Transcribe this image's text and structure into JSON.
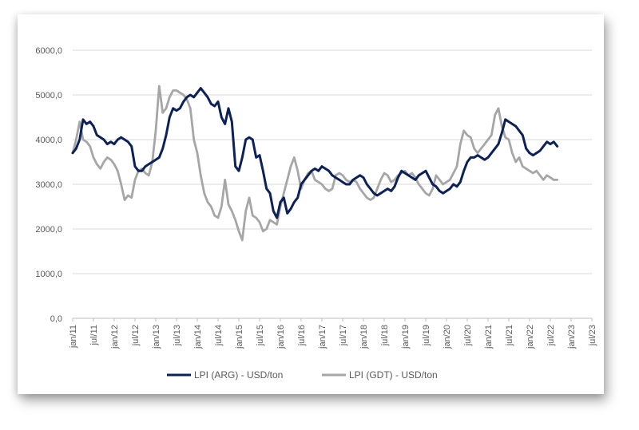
{
  "chart_data": {
    "type": "line",
    "title": "",
    "xlabel": "",
    "ylabel": "",
    "ylim": [
      0,
      6000
    ],
    "y_ticks": [
      "6000,0",
      "5000,0",
      "4000,0",
      "3000,0",
      "2000,0",
      "1000,0",
      "0,0"
    ],
    "y_tick_values": [
      6000,
      5000,
      4000,
      3000,
      2000,
      1000,
      0
    ],
    "x_ticks": [
      "jan/11",
      "jul/11",
      "jan/12",
      "jul/12",
      "jan/13",
      "jul/13",
      "jan/14",
      "jul/14",
      "jan/15",
      "jul/15",
      "jan/16",
      "jul/16",
      "jan/17",
      "jul/17",
      "jan/18",
      "jul/18",
      "jan/19",
      "jul/19",
      "jan/20",
      "jul/20",
      "jan/21",
      "jul/21",
      "jan/22",
      "jul/22",
      "jan/23",
      "jul/23"
    ],
    "x_tick_index": [
      0,
      6,
      12,
      18,
      24,
      30,
      36,
      42,
      48,
      54,
      60,
      66,
      72,
      78,
      84,
      90,
      96,
      102,
      108,
      114,
      120,
      126,
      132,
      138,
      144,
      150
    ],
    "x_range": [
      0,
      150
    ],
    "grid": "horizontal",
    "legend_position": "bottom",
    "series": [
      {
        "name": "LPI (ARG) - USD/ton",
        "color": "#0b2158",
        "points": [
          [
            0,
            3700
          ],
          [
            1,
            3800
          ],
          [
            2,
            4000
          ],
          [
            3,
            4450
          ],
          [
            4,
            4350
          ],
          [
            5,
            4400
          ],
          [
            6,
            4300
          ],
          [
            7,
            4100
          ],
          [
            8,
            4050
          ],
          [
            9,
            4000
          ],
          [
            10,
            3900
          ],
          [
            11,
            3950
          ],
          [
            12,
            3900
          ],
          [
            13,
            4000
          ],
          [
            14,
            4050
          ],
          [
            15,
            4000
          ],
          [
            16,
            3950
          ],
          [
            17,
            3850
          ],
          [
            18,
            3400
          ],
          [
            19,
            3300
          ],
          [
            20,
            3300
          ],
          [
            21,
            3400
          ],
          [
            22,
            3450
          ],
          [
            23,
            3500
          ],
          [
            24,
            3550
          ],
          [
            25,
            3600
          ],
          [
            26,
            3800
          ],
          [
            27,
            4100
          ],
          [
            28,
            4500
          ],
          [
            29,
            4700
          ],
          [
            30,
            4650
          ],
          [
            31,
            4700
          ],
          [
            32,
            4850
          ],
          [
            33,
            4950
          ],
          [
            34,
            5000
          ],
          [
            35,
            4950
          ],
          [
            36,
            5050
          ],
          [
            37,
            5150
          ],
          [
            38,
            5050
          ],
          [
            39,
            4950
          ],
          [
            40,
            4800
          ],
          [
            41,
            4750
          ],
          [
            42,
            4850
          ],
          [
            43,
            4500
          ],
          [
            44,
            4350
          ],
          [
            45,
            4700
          ],
          [
            46,
            4400
          ],
          [
            47,
            3400
          ],
          [
            48,
            3300
          ],
          [
            49,
            3600
          ],
          [
            50,
            4000
          ],
          [
            51,
            4050
          ],
          [
            52,
            4000
          ],
          [
            53,
            3600
          ],
          [
            54,
            3650
          ],
          [
            55,
            3300
          ],
          [
            56,
            2900
          ],
          [
            57,
            2800
          ],
          [
            58,
            2400
          ],
          [
            59,
            2250
          ],
          [
            60,
            2600
          ],
          [
            61,
            2700
          ],
          [
            62,
            2350
          ],
          [
            63,
            2450
          ],
          [
            64,
            2600
          ],
          [
            65,
            2700
          ],
          [
            66,
            3000
          ],
          [
            67,
            3100
          ],
          [
            68,
            3200
          ],
          [
            69,
            3300
          ],
          [
            70,
            3350
          ],
          [
            71,
            3300
          ],
          [
            72,
            3400
          ],
          [
            73,
            3350
          ],
          [
            74,
            3300
          ],
          [
            75,
            3200
          ],
          [
            76,
            3150
          ],
          [
            77,
            3100
          ],
          [
            78,
            3050
          ],
          [
            79,
            3000
          ],
          [
            80,
            3000
          ],
          [
            81,
            3100
          ],
          [
            82,
            3150
          ],
          [
            83,
            3200
          ],
          [
            84,
            3150
          ],
          [
            85,
            3000
          ],
          [
            86,
            2900
          ],
          [
            87,
            2800
          ],
          [
            88,
            2750
          ],
          [
            89,
            2800
          ],
          [
            90,
            2850
          ],
          [
            91,
            2900
          ],
          [
            92,
            2850
          ],
          [
            93,
            2950
          ],
          [
            94,
            3150
          ],
          [
            95,
            3300
          ],
          [
            96,
            3250
          ],
          [
            97,
            3200
          ],
          [
            98,
            3150
          ],
          [
            99,
            3100
          ],
          [
            100,
            3200
          ],
          [
            101,
            3250
          ],
          [
            102,
            3300
          ],
          [
            103,
            3150
          ],
          [
            104,
            3000
          ],
          [
            105,
            2950
          ],
          [
            106,
            2850
          ],
          [
            107,
            2800
          ],
          [
            108,
            2850
          ],
          [
            109,
            2900
          ],
          [
            110,
            3000
          ],
          [
            111,
            2950
          ],
          [
            112,
            3050
          ],
          [
            113,
            3300
          ],
          [
            114,
            3500
          ],
          [
            115,
            3600
          ],
          [
            116,
            3600
          ],
          [
            117,
            3650
          ],
          [
            118,
            3600
          ],
          [
            119,
            3550
          ],
          [
            120,
            3600
          ],
          [
            121,
            3700
          ],
          [
            122,
            3800
          ],
          [
            123,
            3900
          ],
          [
            124,
            4150
          ],
          [
            125,
            4450
          ],
          [
            126,
            4400
          ],
          [
            127,
            4350
          ],
          [
            128,
            4300
          ],
          [
            129,
            4200
          ],
          [
            130,
            4100
          ],
          [
            131,
            3800
          ],
          [
            132,
            3700
          ],
          [
            133,
            3650
          ],
          [
            134,
            3700
          ],
          [
            135,
            3750
          ],
          [
            136,
            3850
          ],
          [
            137,
            3950
          ],
          [
            138,
            3900
          ],
          [
            139,
            3950
          ],
          [
            140,
            3850
          ]
        ]
      },
      {
        "name": "LPI (GDT) - USD/ton",
        "color": "#a6a6a6",
        "points": [
          [
            0,
            3700
          ],
          [
            1,
            4000
          ],
          [
            2,
            4400
          ],
          [
            3,
            4000
          ],
          [
            4,
            3950
          ],
          [
            5,
            3850
          ],
          [
            6,
            3600
          ],
          [
            7,
            3450
          ],
          [
            8,
            3350
          ],
          [
            9,
            3500
          ],
          [
            10,
            3600
          ],
          [
            11,
            3550
          ],
          [
            12,
            3450
          ],
          [
            13,
            3300
          ],
          [
            14,
            3000
          ],
          [
            15,
            2650
          ],
          [
            16,
            2750
          ],
          [
            17,
            2700
          ],
          [
            18,
            3100
          ],
          [
            19,
            3300
          ],
          [
            20,
            3350
          ],
          [
            21,
            3250
          ],
          [
            22,
            3200
          ],
          [
            23,
            3500
          ],
          [
            24,
            4200
          ],
          [
            25,
            5200
          ],
          [
            26,
            4600
          ],
          [
            27,
            4700
          ],
          [
            28,
            4950
          ],
          [
            29,
            5100
          ],
          [
            30,
            5100
          ],
          [
            31,
            5050
          ],
          [
            32,
            5000
          ],
          [
            33,
            4900
          ],
          [
            34,
            4700
          ],
          [
            35,
            4000
          ],
          [
            36,
            3700
          ],
          [
            37,
            3200
          ],
          [
            38,
            2800
          ],
          [
            39,
            2600
          ],
          [
            40,
            2500
          ],
          [
            41,
            2300
          ],
          [
            42,
            2250
          ],
          [
            43,
            2500
          ],
          [
            44,
            3100
          ],
          [
            45,
            2550
          ],
          [
            46,
            2400
          ],
          [
            47,
            2200
          ],
          [
            48,
            1950
          ],
          [
            49,
            1750
          ],
          [
            50,
            2400
          ],
          [
            51,
            2700
          ],
          [
            52,
            2300
          ],
          [
            53,
            2250
          ],
          [
            54,
            2150
          ],
          [
            55,
            1950
          ],
          [
            56,
            2000
          ],
          [
            57,
            2200
          ],
          [
            58,
            2150
          ],
          [
            59,
            2100
          ],
          [
            60,
            2500
          ],
          [
            61,
            2800
          ],
          [
            62,
            3100
          ],
          [
            63,
            3400
          ],
          [
            64,
            3600
          ],
          [
            65,
            3300
          ],
          [
            66,
            2900
          ],
          [
            67,
            3100
          ],
          [
            68,
            3250
          ],
          [
            69,
            3300
          ],
          [
            70,
            3100
          ],
          [
            71,
            3050
          ],
          [
            72,
            3000
          ],
          [
            73,
            2900
          ],
          [
            74,
            2850
          ],
          [
            75,
            2900
          ],
          [
            76,
            3200
          ],
          [
            77,
            3250
          ],
          [
            78,
            3200
          ],
          [
            79,
            3100
          ],
          [
            80,
            3050
          ],
          [
            81,
            3100
          ],
          [
            82,
            3050
          ],
          [
            83,
            2900
          ],
          [
            84,
            2800
          ],
          [
            85,
            2700
          ],
          [
            86,
            2650
          ],
          [
            87,
            2700
          ],
          [
            88,
            2900
          ],
          [
            89,
            3100
          ],
          [
            90,
            3250
          ],
          [
            91,
            3200
          ],
          [
            92,
            3050
          ],
          [
            93,
            3100
          ],
          [
            94,
            3200
          ],
          [
            95,
            3250
          ],
          [
            96,
            3300
          ],
          [
            97,
            3200
          ],
          [
            98,
            3250
          ],
          [
            99,
            3150
          ],
          [
            100,
            3000
          ],
          [
            101,
            2900
          ],
          [
            102,
            2800
          ],
          [
            103,
            2750
          ],
          [
            104,
            2900
          ],
          [
            105,
            3200
          ],
          [
            106,
            3100
          ],
          [
            107,
            3000
          ],
          [
            108,
            3050
          ],
          [
            109,
            3100
          ],
          [
            110,
            3250
          ],
          [
            111,
            3400
          ],
          [
            112,
            3900
          ],
          [
            113,
            4200
          ],
          [
            114,
            4100
          ],
          [
            115,
            4050
          ],
          [
            116,
            3800
          ],
          [
            117,
            3700
          ],
          [
            118,
            3800
          ],
          [
            119,
            3900
          ],
          [
            120,
            4000
          ],
          [
            121,
            4100
          ],
          [
            122,
            4550
          ],
          [
            123,
            4700
          ],
          [
            124,
            4300
          ],
          [
            125,
            4050
          ],
          [
            126,
            4000
          ],
          [
            127,
            3700
          ],
          [
            128,
            3500
          ],
          [
            129,
            3600
          ],
          [
            130,
            3400
          ],
          [
            131,
            3350
          ],
          [
            132,
            3300
          ],
          [
            133,
            3250
          ],
          [
            134,
            3300
          ],
          [
            135,
            3200
          ],
          [
            136,
            3100
          ],
          [
            137,
            3200
          ],
          [
            138,
            3150
          ],
          [
            139,
            3100
          ],
          [
            140,
            3100
          ]
        ]
      }
    ]
  }
}
